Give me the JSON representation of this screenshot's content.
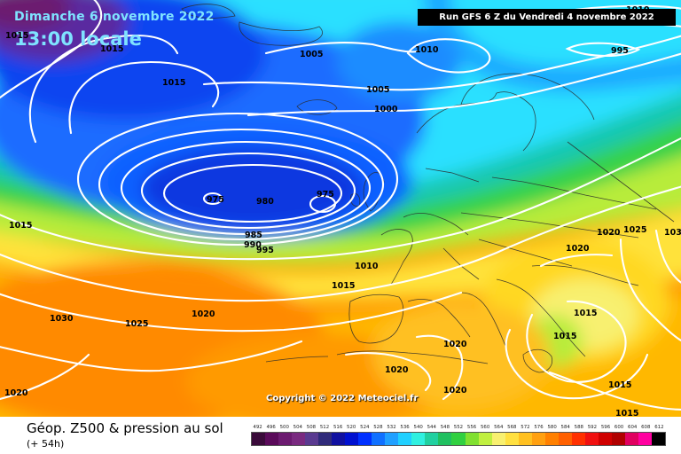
{
  "header": {
    "date_text": "Dimanche 6 novembre 2022",
    "time_text": "13:00 locale",
    "run_text": "Run GFS 6 Z du Vendredi 4 novembre 2022"
  },
  "copyright": "Copyright © 2022 Meteociel.fr",
  "footer": {
    "title": "Géop. Z500 & pression au sol",
    "subtitle": "(+ 54h)"
  },
  "isobar_labels": [
    "1015",
    "1015",
    "1015",
    "1010",
    "1005",
    "1010",
    "995",
    "1005",
    "1000",
    "975",
    "980",
    "975",
    "985",
    "990",
    "995",
    "1010",
    "1015",
    "1015",
    "1030",
    "1025",
    "1020",
    "1020",
    "1020",
    "1020",
    "1025",
    "103",
    "1020",
    "1015",
    "1015",
    "1020",
    "1015",
    "1015",
    "1020"
  ],
  "scale": {
    "values": [
      "492",
      "496",
      "500",
      "504",
      "508",
      "512",
      "516",
      "520",
      "524",
      "528",
      "532",
      "536",
      "540",
      "544",
      "548",
      "552",
      "556",
      "560",
      "564",
      "568",
      "572",
      "576",
      "580",
      "584",
      "588",
      "592",
      "596",
      "600",
      "604",
      "608",
      "612"
    ],
    "colors": [
      "#3a0a3a",
      "#5a0a5a",
      "#6c1a70",
      "#7a2a80",
      "#5a3a90",
      "#302a7a",
      "#1010a0",
      "#0010d0",
      "#0030ff",
      "#1070ff",
      "#20a0ff",
      "#20d0ff",
      "#30f0e0",
      "#20d0a0",
      "#20c060",
      "#30d040",
      "#80e030",
      "#c0f040",
      "#f8f070",
      "#ffe040",
      "#ffc020",
      "#ffa010",
      "#ff8000",
      "#ff6000",
      "#ff3000",
      "#f01010",
      "#d00000",
      "#b00000",
      "#e00060",
      "#ff00a0",
      "#000000"
    ]
  }
}
